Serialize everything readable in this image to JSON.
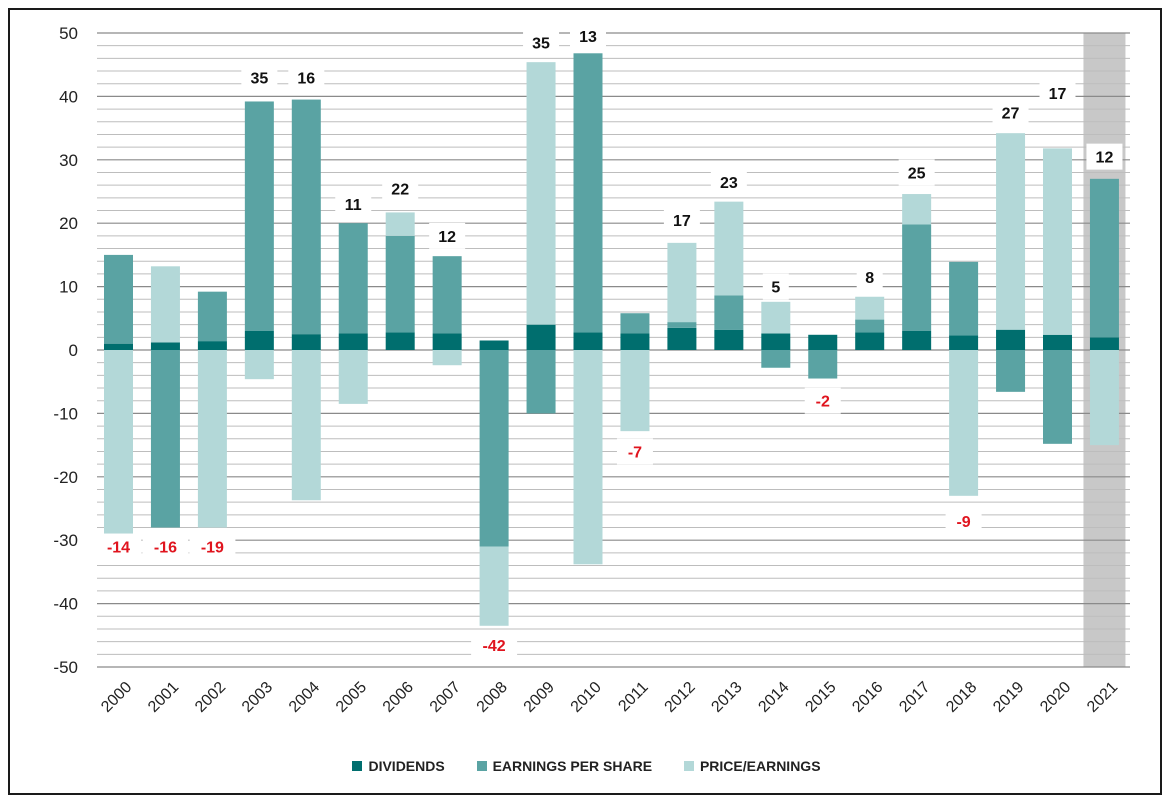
{
  "colors": {
    "dividends": "#006e6e",
    "eps": "#5aa3a3",
    "pe": "#b3d8d8",
    "positive_label": "#111111",
    "negative_label": "#e0141e",
    "highlight": "#c8c8c8"
  },
  "legend": {
    "items": [
      {
        "label": "DIVIDENDS",
        "color": "#006e6e"
      },
      {
        "label": "EARNINGS PER SHARE",
        "color": "#5aa3a3"
      },
      {
        "label": "PRICE/EARNINGS",
        "color": "#b3d8d8"
      }
    ]
  },
  "chart_data": {
    "type": "bar",
    "stacked": true,
    "ylim": [
      -50,
      50
    ],
    "yticks": [
      50,
      40,
      30,
      20,
      10,
      0,
      -10,
      -20,
      -30,
      -40,
      -50
    ],
    "grid": true,
    "legend_position": "bottom",
    "highlight_category": "2021",
    "categories": [
      "2000",
      "2001",
      "2002",
      "2003",
      "2004",
      "2005",
      "2006",
      "2007",
      "2008",
      "2009",
      "2010",
      "2011",
      "2012",
      "2013",
      "2014",
      "2015",
      "2016",
      "2017",
      "2018",
      "2019",
      "2020",
      "2021"
    ],
    "series": [
      {
        "name": "DIVIDENDS",
        "values": [
          1,
          1.2,
          1.4,
          3,
          2.5,
          2.6,
          2.8,
          2.6,
          1.5,
          4,
          2.8,
          2.6,
          3.5,
          3.2,
          2.6,
          2.4,
          2.8,
          3,
          2.3,
          3.2,
          2.4,
          2
        ]
      },
      {
        "name": "EARNINGS PER SHARE",
        "values": [
          14,
          -28,
          7.8,
          36.2,
          37,
          17.4,
          15.2,
          12.2,
          -31,
          -10,
          44,
          3.2,
          0.9,
          5.4,
          -2.8,
          -4.5,
          2,
          16.8,
          11.6,
          -6.6,
          -14.8,
          25
        ]
      },
      {
        "name": "PRICE/EARNINGS",
        "values": [
          -29,
          12,
          -28,
          -4.6,
          -23.7,
          -8.5,
          3.7,
          -2.4,
          -12.5,
          41.4,
          -33.8,
          -12.8,
          12.5,
          14.8,
          5,
          0,
          3.6,
          4.8,
          -23,
          31,
          29.4,
          -15
        ]
      }
    ],
    "total_returns": [
      -14,
      -16,
      -19,
      35,
      16,
      11,
      22,
      12,
      -42,
      35,
      13,
      -7,
      17,
      23,
      5,
      -2,
      8,
      25,
      -9,
      27,
      17,
      12
    ],
    "total_label_positions": [
      "below",
      "below",
      "below",
      "above",
      "above",
      "above",
      "above",
      "above",
      "below",
      "above",
      "above",
      "below",
      "above",
      "above",
      "above",
      "below",
      "above",
      "above",
      "below",
      "above",
      "above",
      "above"
    ],
    "total_label_values": [
      -31,
      -31,
      -31,
      43,
      43,
      23,
      25.5,
      18,
      -46.5,
      48.5,
      49.5,
      -16,
      20.5,
      26.5,
      10,
      -8,
      11.5,
      28,
      -27,
      37.5,
      40.5,
      30.5
    ]
  }
}
